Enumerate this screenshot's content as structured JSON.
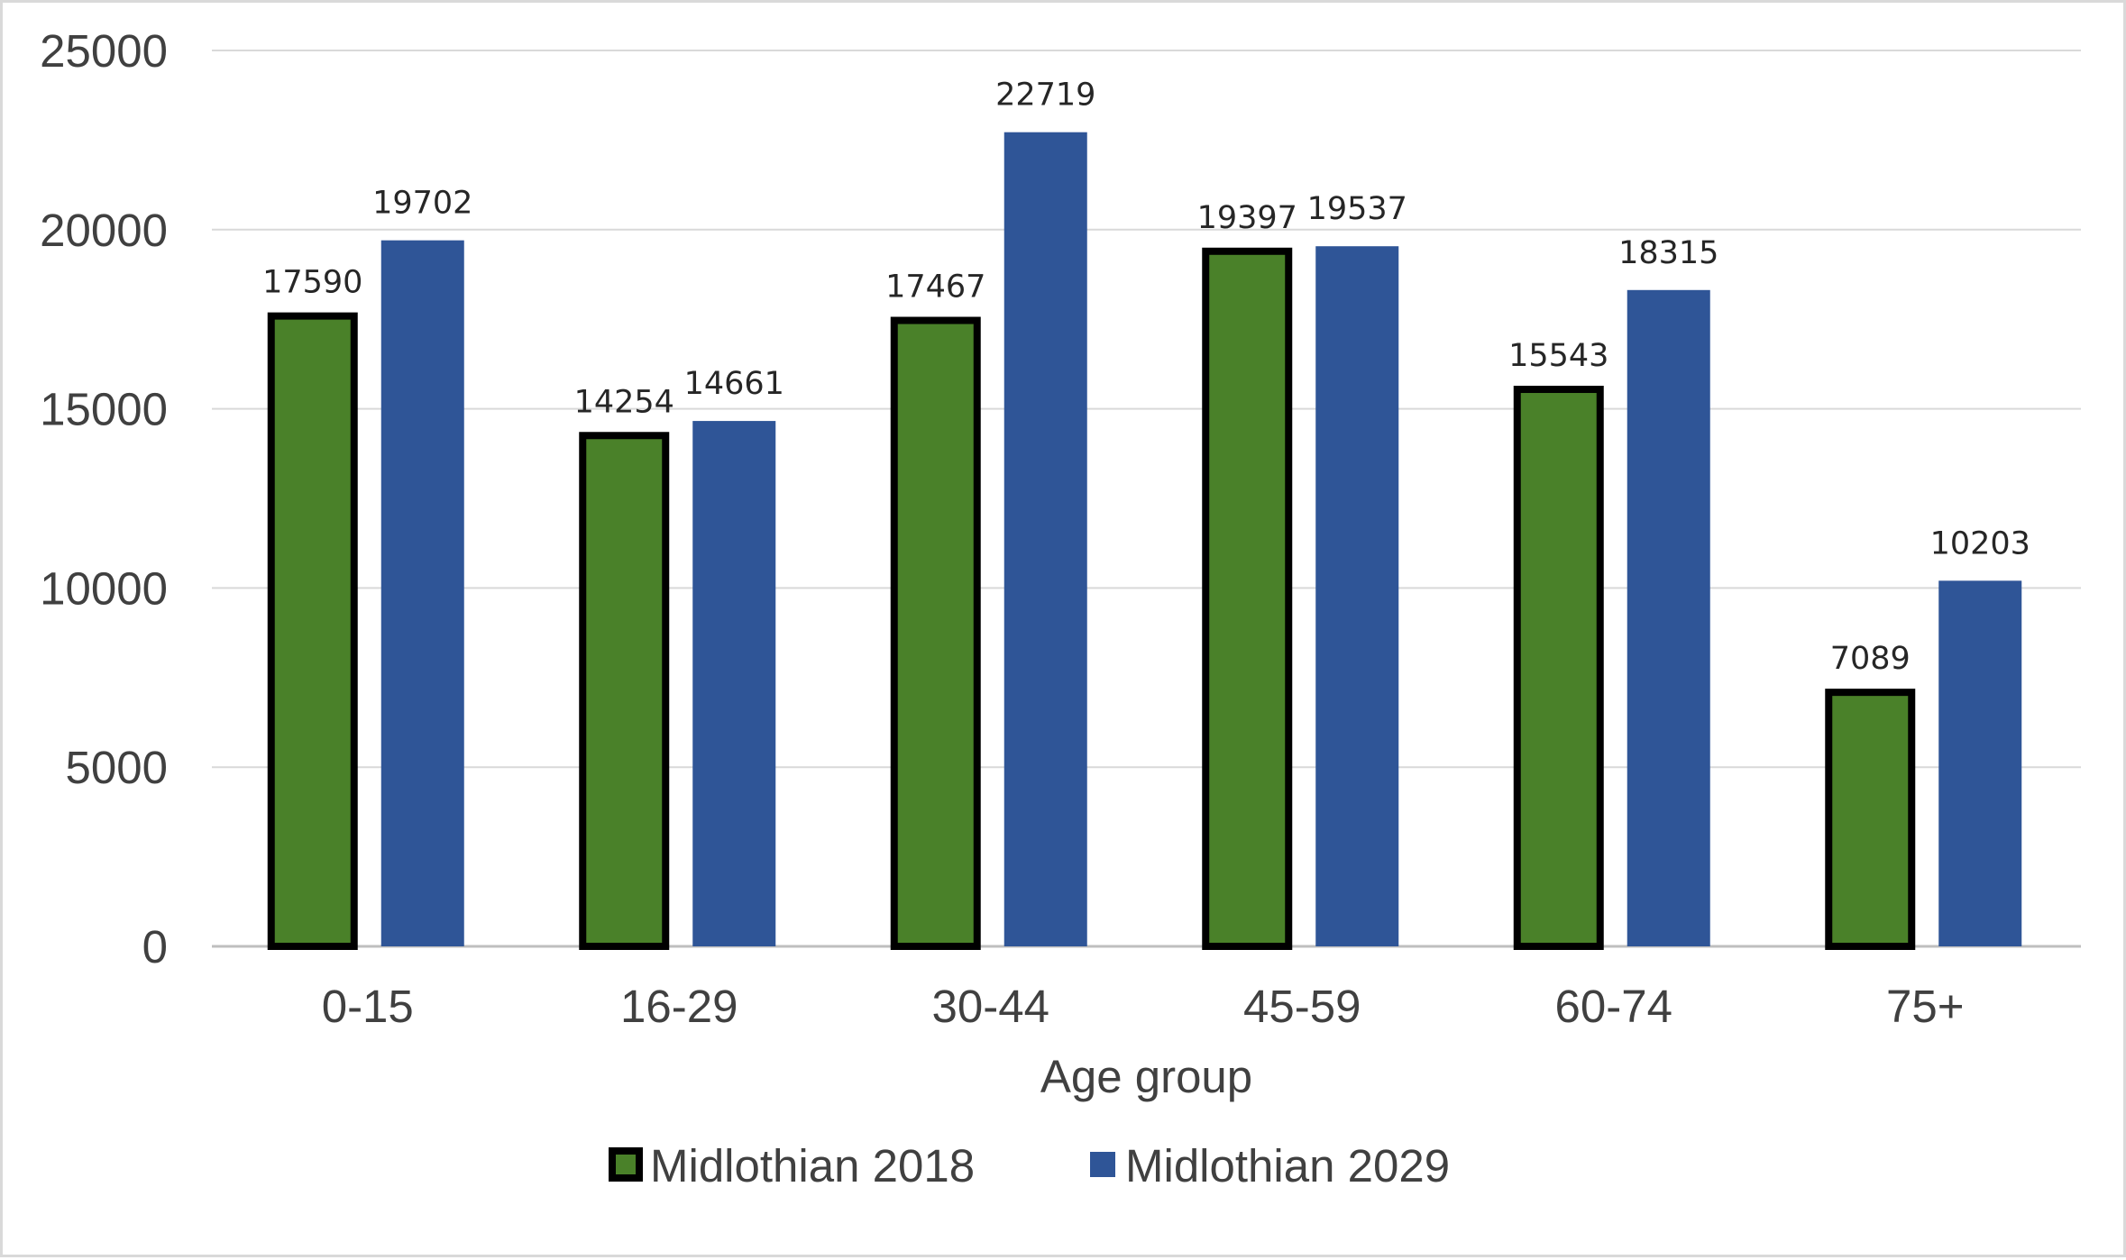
{
  "chart_data": {
    "type": "bar",
    "categories": [
      "0-15",
      "16-29",
      "30-44",
      "45-59",
      "60-74",
      "75+"
    ],
    "series": [
      {
        "name": "Midlothian 2018",
        "values": [
          17590,
          14254,
          17467,
          19397,
          15543,
          7089
        ],
        "color": "#4a8129",
        "outline": "#000000"
      },
      {
        "name": "Midlothian 2029",
        "values": [
          19702,
          14661,
          22719,
          19537,
          18315,
          10203
        ],
        "color": "#2f5597"
      }
    ],
    "title": "",
    "xlabel": "Age group",
    "ylabel": "",
    "ylim": [
      0,
      25000
    ],
    "yticks": [
      0,
      5000,
      10000,
      15000,
      20000,
      25000
    ],
    "grid": true,
    "legend_position": "bottom",
    "data_labels": true
  }
}
